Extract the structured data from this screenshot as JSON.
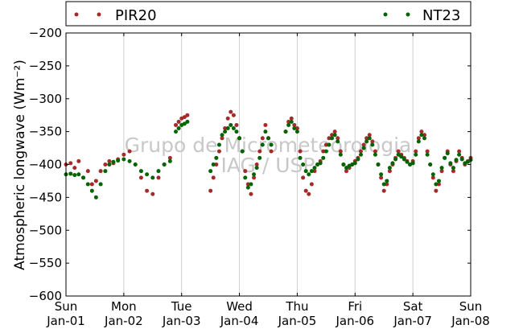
{
  "chart_data": {
    "type": "scatter",
    "title": "",
    "xlabel": "",
    "ylabel": "Atmospheric longwave (Wm⁻²)",
    "ylim": [
      -600,
      -200
    ],
    "yticks": [
      "−200",
      "−250",
      "−300",
      "−350",
      "−400",
      "−450",
      "−500",
      "−550",
      "−600"
    ],
    "ytick_values": [
      -200,
      -250,
      -300,
      -350,
      -400,
      -450,
      -500,
      -550,
      -600
    ],
    "xlim": [
      0,
      7
    ],
    "xticks": [
      {
        "day": "Sun",
        "date": "Jan-01"
      },
      {
        "day": "Mon",
        "date": "Jan-02"
      },
      {
        "day": "Tue",
        "date": "Jan-03"
      },
      {
        "day": "Wed",
        "date": "Jan-04"
      },
      {
        "day": "Thu",
        "date": "Jan-05"
      },
      {
        "day": "Fri",
        "date": "Jan-06"
      },
      {
        "day": "Sat",
        "date": "Jan-07"
      },
      {
        "day": "Sun",
        "date": "Jan-08"
      }
    ],
    "grid": "vertical",
    "legend_placement": "top, outside plot",
    "watermark": [
      "Grupo de Micrometeorologia",
      "IAG / USP"
    ],
    "series": [
      {
        "name": "PIR20",
        "color": "#a52a2a",
        "x": [
          0.0,
          0.08,
          0.15,
          0.22,
          0.3,
          0.38,
          0.45,
          0.52,
          0.6,
          0.68,
          0.75,
          0.82,
          0.9,
          1.0,
          1.1,
          1.2,
          1.3,
          1.4,
          1.5,
          1.6,
          1.7,
          1.8,
          1.9,
          1.95,
          2.0,
          2.05,
          2.1,
          2.5,
          2.55,
          2.6,
          2.65,
          2.7,
          2.75,
          2.8,
          2.85,
          2.9,
          2.95,
          3.0,
          3.05,
          3.1,
          3.15,
          3.2,
          3.25,
          3.3,
          3.35,
          3.4,
          3.45,
          3.5,
          3.55,
          3.8,
          3.85,
          3.9,
          3.95,
          4.0,
          4.05,
          4.1,
          4.15,
          4.2,
          4.25,
          4.3,
          4.35,
          4.4,
          4.45,
          4.5,
          4.55,
          4.6,
          4.65,
          4.7,
          4.75,
          4.8,
          4.85,
          4.9,
          4.95,
          5.0,
          5.05,
          5.1,
          5.15,
          5.2,
          5.25,
          5.3,
          5.35,
          5.4,
          5.45,
          5.5,
          5.55,
          5.6,
          5.65,
          5.7,
          5.75,
          5.8,
          5.85,
          5.9,
          5.95,
          6.0,
          6.05,
          6.1,
          6.15,
          6.2,
          6.25,
          6.3,
          6.35,
          6.4,
          6.45,
          6.5,
          6.55,
          6.6,
          6.65,
          6.7,
          6.75,
          6.8,
          6.85,
          6.9,
          6.95,
          7.0
        ],
        "y": [
          -400,
          -398,
          -405,
          -395,
          -420,
          -410,
          -430,
          -425,
          -410,
          -400,
          -395,
          -398,
          -392,
          -385,
          -380,
          -400,
          -420,
          -440,
          -445,
          -420,
          -400,
          -390,
          -340,
          -335,
          -330,
          -328,
          -325,
          -440,
          -420,
          -400,
          -380,
          -360,
          -345,
          -330,
          -320,
          -325,
          -340,
          -360,
          -380,
          -410,
          -430,
          -445,
          -420,
          -400,
          -380,
          -360,
          -340,
          -360,
          -380,
          -350,
          -335,
          -330,
          -340,
          -345,
          -380,
          -420,
          -440,
          -445,
          -430,
          -410,
          -400,
          -395,
          -380,
          -370,
          -360,
          -355,
          -350,
          -360,
          -380,
          -400,
          -410,
          -405,
          -400,
          -395,
          -390,
          -380,
          -370,
          -360,
          -355,
          -365,
          -380,
          -400,
          -420,
          -440,
          -430,
          -410,
          -400,
          -390,
          -380,
          -385,
          -390,
          -395,
          -400,
          -395,
          -380,
          -360,
          -350,
          -355,
          -380,
          -400,
          -420,
          -440,
          -430,
          -410,
          -390,
          -380,
          -400,
          -410,
          -395,
          -380,
          -390,
          -400,
          -395,
          -390
        ]
      },
      {
        "name": "NT23",
        "color": "#006400",
        "x": [
          0.0,
          0.08,
          0.15,
          0.22,
          0.3,
          0.38,
          0.45,
          0.52,
          0.6,
          0.68,
          0.75,
          0.82,
          0.9,
          1.0,
          1.1,
          1.2,
          1.3,
          1.4,
          1.5,
          1.6,
          1.7,
          1.8,
          1.9,
          1.95,
          2.0,
          2.05,
          2.1,
          2.5,
          2.55,
          2.6,
          2.65,
          2.7,
          2.75,
          2.8,
          2.85,
          2.9,
          2.95,
          3.0,
          3.05,
          3.1,
          3.15,
          3.2,
          3.25,
          3.3,
          3.35,
          3.4,
          3.45,
          3.5,
          3.55,
          3.8,
          3.85,
          3.9,
          3.95,
          4.0,
          4.05,
          4.1,
          4.15,
          4.2,
          4.25,
          4.3,
          4.35,
          4.4,
          4.45,
          4.5,
          4.55,
          4.6,
          4.65,
          4.7,
          4.75,
          4.8,
          4.85,
          4.9,
          4.95,
          5.0,
          5.05,
          5.1,
          5.15,
          5.2,
          5.25,
          5.3,
          5.35,
          5.4,
          5.45,
          5.5,
          5.55,
          5.6,
          5.65,
          5.7,
          5.75,
          5.8,
          5.85,
          5.9,
          5.95,
          6.0,
          6.05,
          6.1,
          6.15,
          6.2,
          6.25,
          6.3,
          6.35,
          6.4,
          6.45,
          6.5,
          6.55,
          6.6,
          6.65,
          6.7,
          6.75,
          6.8,
          6.85,
          6.9,
          6.95,
          7.0
        ],
        "y": [
          -415,
          -414,
          -416,
          -415,
          -420,
          -430,
          -440,
          -450,
          -430,
          -410,
          -400,
          -396,
          -394,
          -392,
          -395,
          -400,
          -410,
          -415,
          -420,
          -410,
          -400,
          -395,
          -350,
          -345,
          -340,
          -338,
          -335,
          -410,
          -400,
          -390,
          -370,
          -355,
          -350,
          -345,
          -340,
          -345,
          -350,
          -360,
          -380,
          -420,
          -435,
          -430,
          -415,
          -405,
          -390,
          -370,
          -350,
          -360,
          -370,
          -350,
          -340,
          -335,
          -345,
          -350,
          -390,
          -400,
          -410,
          -415,
          -410,
          -405,
          -400,
          -398,
          -390,
          -380,
          -370,
          -360,
          -355,
          -365,
          -385,
          -400,
          -405,
          -402,
          -400,
          -398,
          -392,
          -385,
          -375,
          -365,
          -360,
          -370,
          -385,
          -400,
          -415,
          -430,
          -425,
          -405,
          -398,
          -392,
          -385,
          -388,
          -392,
          -396,
          -400,
          -398,
          -385,
          -365,
          -355,
          -360,
          -385,
          -400,
          -415,
          -430,
          -425,
          -405,
          -390,
          -383,
          -398,
          -405,
          -393,
          -385,
          -392,
          -398,
          -396,
          -393
        ]
      }
    ]
  }
}
